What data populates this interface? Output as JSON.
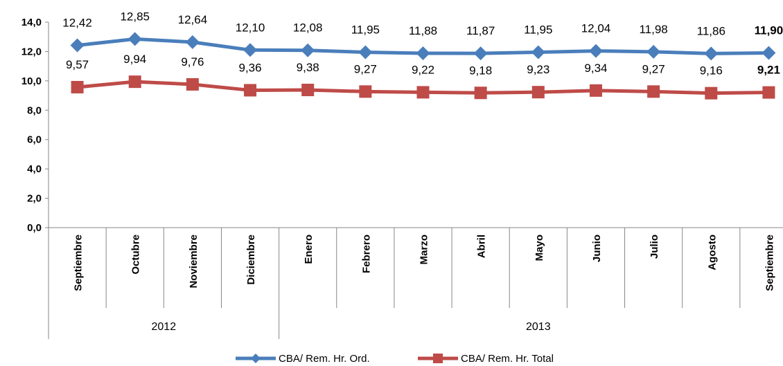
{
  "chart_data": {
    "type": "line",
    "categories": [
      "Septiembre",
      "Octubre",
      "Noviembre",
      "Diciembre",
      "Enero",
      "Febrero",
      "Marzo",
      "Abril",
      "Mayo",
      "Junio",
      "Julio",
      "Agosto",
      "Septiembre"
    ],
    "year_groups": [
      {
        "label": "2012",
        "start": 0,
        "end": 3
      },
      {
        "label": "2013",
        "start": 4,
        "end": 12
      }
    ],
    "ylim": [
      0,
      14
    ],
    "yticks": [
      0,
      2,
      4,
      6,
      8,
      10,
      12,
      14
    ],
    "ytick_labels": [
      "0,0",
      "2,0",
      "4,0",
      "6,0",
      "8,0",
      "10,0",
      "12,0",
      "14,0"
    ],
    "grid": false,
    "legend_position": "bottom",
    "series": [
      {
        "name": "CBA/ Rem. Hr. Ord.",
        "color": "#4a7ebb",
        "marker": "diamond",
        "values": [
          12.42,
          12.85,
          12.64,
          12.1,
          12.08,
          11.95,
          11.88,
          11.87,
          11.95,
          12.04,
          11.98,
          11.86,
          11.9
        ],
        "labels": [
          "12,42",
          "12,85",
          "12,64",
          "12,10",
          "12,08",
          "11,95",
          "11,88",
          "11,87",
          "11,95",
          "12,04",
          "11,98",
          "11,86",
          "11,90"
        ]
      },
      {
        "name": "CBA/ Rem. Hr. Total",
        "color": "#be4b48",
        "marker": "square",
        "values": [
          9.57,
          9.94,
          9.76,
          9.36,
          9.38,
          9.27,
          9.22,
          9.18,
          9.23,
          9.34,
          9.27,
          9.16,
          9.21
        ],
        "labels": [
          "9,57",
          "9,94",
          "9,76",
          "9,36",
          "9,38",
          "9,27",
          "9,22",
          "9,18",
          "9,23",
          "9,34",
          "9,27",
          "9,16",
          "9,21"
        ]
      }
    ],
    "highlight_color": "#ff0000"
  }
}
